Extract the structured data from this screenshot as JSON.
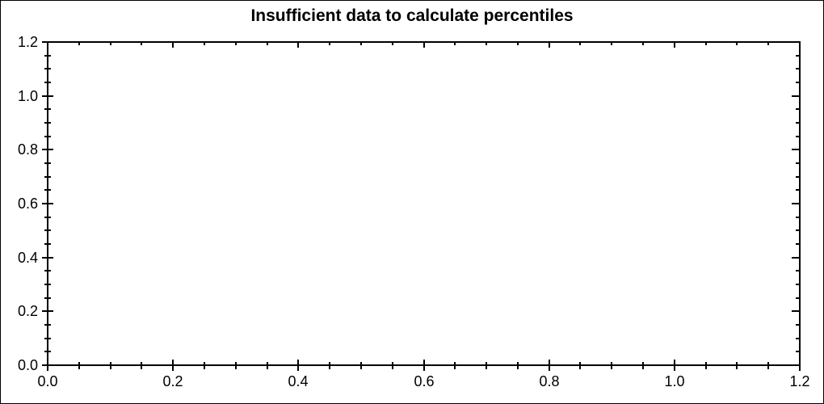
{
  "chart_data": {
    "type": "scatter",
    "title": "Insufficient data to calculate percentiles",
    "series": [],
    "xlabel": "",
    "ylabel": "",
    "xlim": [
      0,
      1.2
    ],
    "ylim": [
      0,
      1.2
    ],
    "x_tick_labels": [
      "0.0",
      "0.2",
      "0.4",
      "0.6",
      "0.8",
      "1.0",
      "1.2"
    ],
    "x_tick_values": [
      0,
      0.2,
      0.4,
      0.6,
      0.8,
      1.0,
      1.2
    ],
    "y_tick_labels": [
      "0.0",
      "0.2",
      "0.4",
      "0.6",
      "0.8",
      "1.0",
      "1.2"
    ],
    "y_tick_values": [
      0,
      0.2,
      0.4,
      0.6,
      0.8,
      1.0,
      1.2
    ],
    "minor_tick_step": 0.05,
    "grid": false,
    "legend": null,
    "frame": true
  },
  "colors": {
    "background": "#ffffff",
    "axis": "#000000",
    "text": "#000000",
    "border": "#000000"
  }
}
